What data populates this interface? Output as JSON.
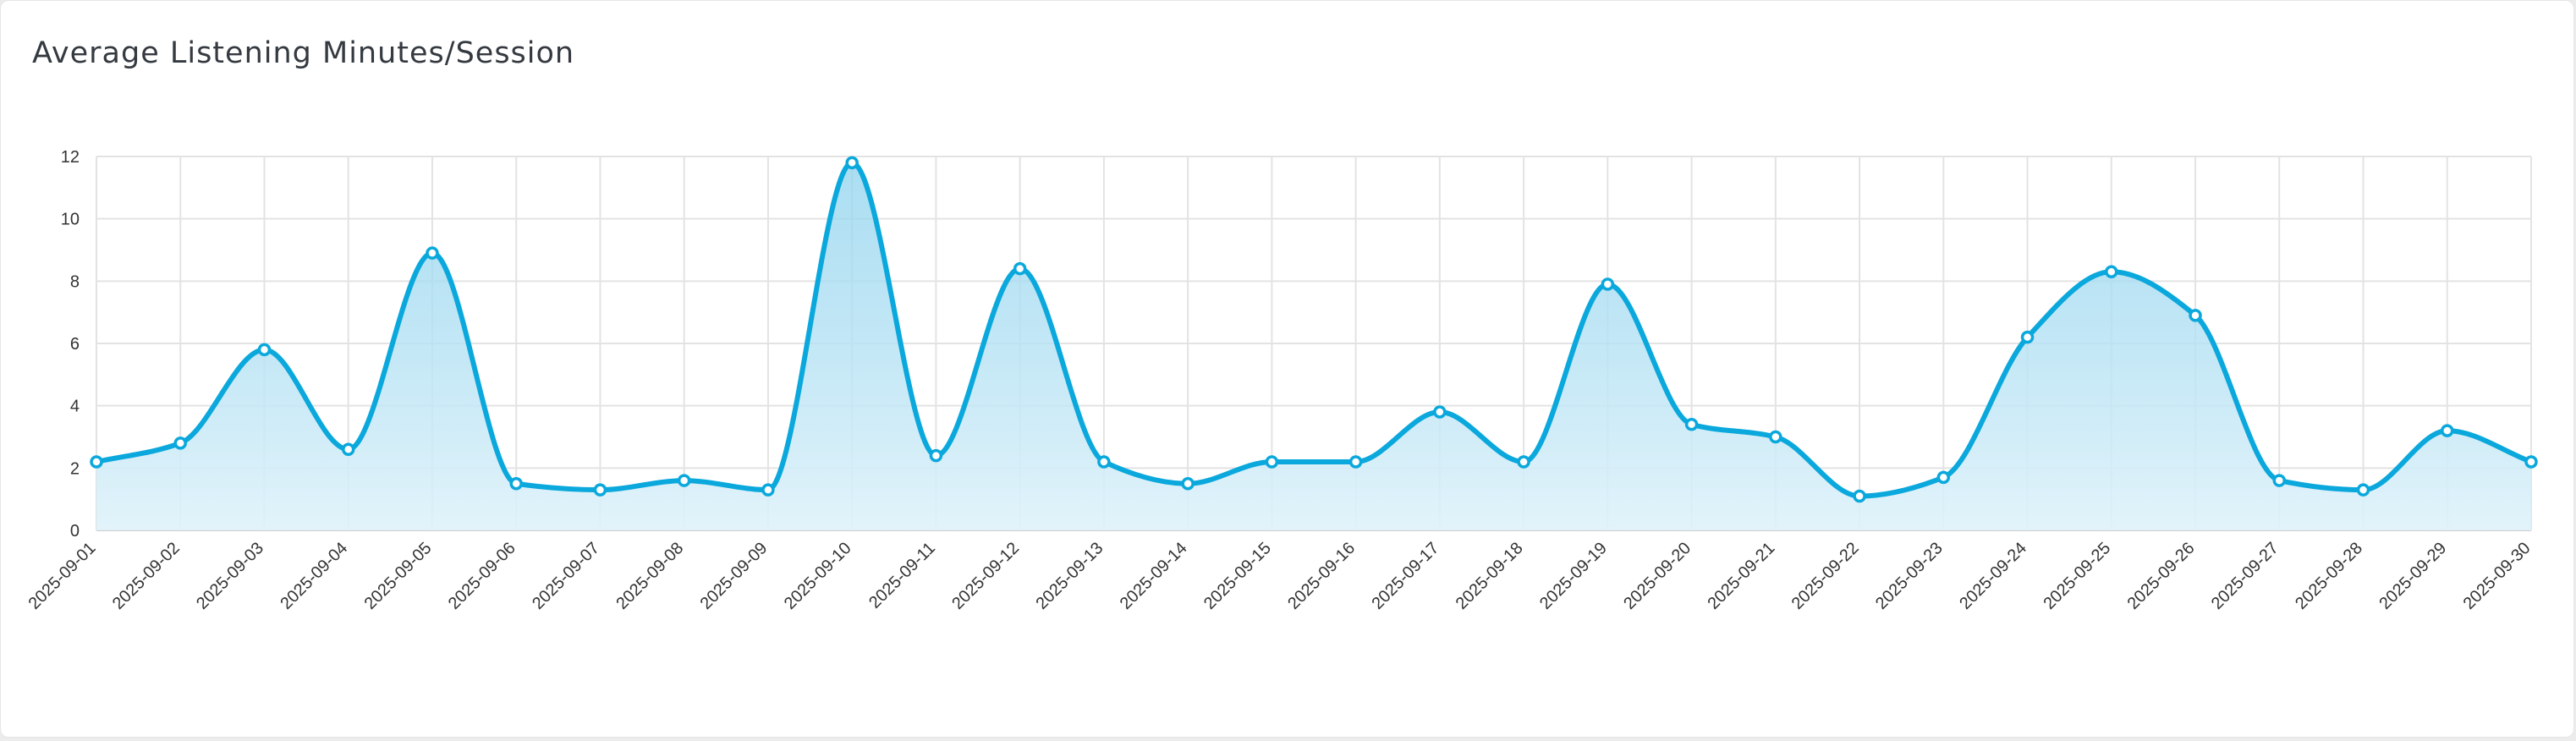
{
  "card": {
    "title": "Average Listening Minutes/Session"
  },
  "chart_data": {
    "type": "area",
    "title": "Average Listening Minutes/Session",
    "xlabel": "",
    "ylabel": "",
    "ylim": [
      0,
      12
    ],
    "yticks": [
      0,
      2,
      4,
      6,
      8,
      10,
      12
    ],
    "grid": true,
    "curve": "smooth",
    "x": [
      "2025-09-01",
      "2025-09-02",
      "2025-09-03",
      "2025-09-04",
      "2025-09-05",
      "2025-09-06",
      "2025-09-07",
      "2025-09-08",
      "2025-09-09",
      "2025-09-10",
      "2025-09-11",
      "2025-09-12",
      "2025-09-13",
      "2025-09-14",
      "2025-09-15",
      "2025-09-16",
      "2025-09-17",
      "2025-09-18",
      "2025-09-19",
      "2025-09-20",
      "2025-09-21",
      "2025-09-22",
      "2025-09-23",
      "2025-09-24",
      "2025-09-25",
      "2025-09-26",
      "2025-09-27",
      "2025-09-28",
      "2025-09-29",
      "2025-09-30"
    ],
    "series": [
      {
        "values": [
          2.2,
          2.8,
          5.8,
          2.6,
          8.9,
          1.5,
          1.3,
          1.6,
          1.3,
          11.8,
          2.4,
          8.4,
          2.2,
          1.5,
          2.2,
          2.2,
          3.8,
          2.2,
          7.9,
          3.4,
          3.0,
          1.1,
          1.7,
          6.2,
          8.3,
          6.9,
          1.6,
          1.3,
          3.2,
          2.2
        ],
        "color": "#0aa8dc"
      }
    ],
    "colors": {
      "line": "#0aa8dc",
      "fill_top": "#8fd3ee",
      "fill_bottom": "#dff2fa",
      "grid": "#e3e3e3",
      "axis": "#cfcfcf",
      "text": "#333333"
    }
  }
}
